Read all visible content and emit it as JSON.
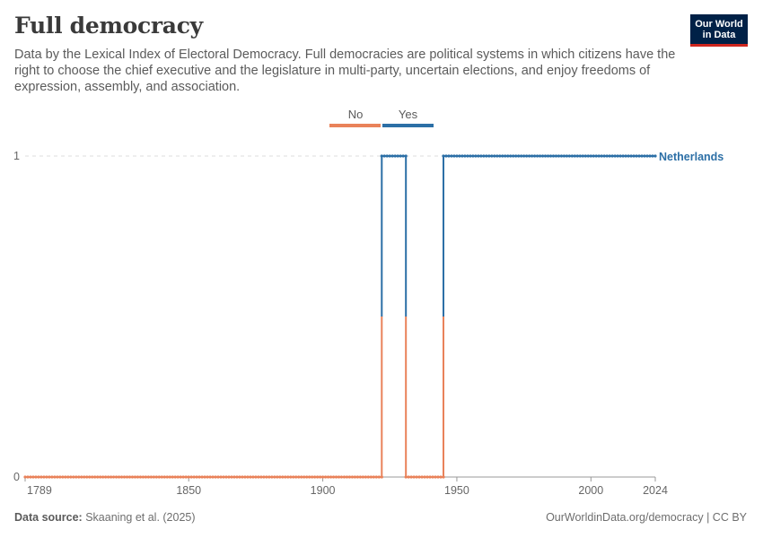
{
  "header": {
    "title": "Full democracy",
    "subtitle": "Data by the Lexical Index of Electoral Democracy. Full democracies are political systems in which citizens have the right to choose the chief executive and the legislature in multi-party, uncertain elections, and enjoy freedoms of expression, assembly, and association."
  },
  "logo": {
    "line1": "Our World",
    "line2": "in Data"
  },
  "legend": {
    "items": [
      {
        "label": "No",
        "color": "#e9825a"
      },
      {
        "label": "Yes",
        "color": "#2c6fa6"
      }
    ]
  },
  "chart_data": {
    "type": "line",
    "title": "Full democracy",
    "series": [
      {
        "name": "Netherlands",
        "segments": [
          {
            "from": 1789,
            "to": 1922,
            "value": 0
          },
          {
            "from": 1922,
            "to": 1931,
            "value": 1
          },
          {
            "from": 1931,
            "to": 1945,
            "value": 0
          },
          {
            "from": 1945,
            "to": 2024,
            "value": 1
          }
        ]
      }
    ],
    "xlim": [
      1789,
      2024
    ],
    "ylim": [
      0,
      1
    ],
    "x_ticks": [
      1789,
      1850,
      1900,
      1950,
      2000,
      2024
    ],
    "y_ticks": [
      0,
      1
    ],
    "colors": {
      "no": "#e9825a",
      "yes": "#2c6fa6"
    },
    "grid": "horizontal dashed at y=1",
    "series_label_placement": "right end"
  },
  "footer": {
    "source_label": "Data source:",
    "source_text": "Skaaning et al. (2025)",
    "credit": "OurWorldinData.org/democracy | CC BY"
  }
}
